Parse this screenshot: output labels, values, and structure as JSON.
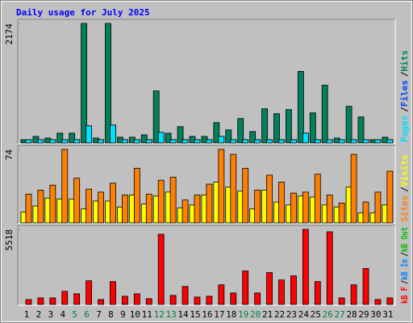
{
  "title": "Daily usage for July 2025",
  "legend_separator": "/",
  "chart_data": [
    {
      "type": "bar",
      "ylim": [
        0,
        2174
      ],
      "yticks": [
        2174
      ],
      "series": [
        {
          "name": "Hits",
          "color": "#00805c",
          "values": [
            59,
            118,
            89,
            177,
            177,
            2174,
            89,
            2174,
            104,
            104,
            148,
            946,
            177,
            296,
            118,
            118,
            370,
            237,
            444,
            207,
            621,
            532,
            606,
            1301,
            547,
            1050,
            89,
            666,
            473,
            59,
            104
          ]
        },
        {
          "name": "Files",
          "color": "#0040ff",
          "values": [
            59,
            59,
            59,
            59,
            59,
            311,
            59,
            325,
            59,
            59,
            59,
            192,
            59,
            59,
            59,
            59,
            118,
            59,
            59,
            59,
            59,
            59,
            59,
            177,
            59,
            59,
            59,
            59,
            59,
            59,
            59
          ]
        },
        {
          "name": "Pages",
          "color": "#00e0ff",
          "values": [
            59,
            59,
            59,
            59,
            59,
            311,
            59,
            325,
            59,
            59,
            59,
            192,
            59,
            59,
            59,
            59,
            118,
            59,
            59,
            59,
            59,
            59,
            59,
            177,
            59,
            59,
            59,
            59,
            59,
            59,
            59
          ]
        }
      ]
    },
    {
      "type": "bar",
      "ylim": [
        0,
        74
      ],
      "yticks": [
        74
      ],
      "series": [
        {
          "name": "Visits",
          "color": "#ffff00",
          "values": [
            11,
            17,
            25,
            24,
            24,
            14,
            22,
            22,
            16,
            28,
            19,
            27,
            31,
            15,
            18,
            28,
            41,
            36,
            32,
            14,
            33,
            21,
            18,
            27,
            26,
            18,
            16,
            36,
            10,
            10,
            18
          ]
        },
        {
          "name": "Sites",
          "color": "#ff8000",
          "values": [
            29,
            33,
            38,
            74,
            45,
            34,
            31,
            40,
            28,
            55,
            29,
            43,
            46,
            23,
            28,
            39,
            74,
            69,
            55,
            33,
            48,
            41,
            30,
            31,
            49,
            28,
            20,
            69,
            21,
            31,
            52
          ]
        }
      ]
    },
    {
      "type": "bar",
      "ylim": [
        0,
        5518
      ],
      "yticks": [
        5518
      ],
      "categories": [
        "1",
        "2",
        "3",
        "4",
        "5",
        "6",
        "7",
        "8",
        "9",
        "10",
        "11",
        "12",
        "13",
        "14",
        "15",
        "16",
        "17",
        "18",
        "19",
        "20",
        "21",
        "22",
        "23",
        "24",
        "25",
        "26",
        "27",
        "28",
        "29",
        "30",
        "31"
      ],
      "category_colors": [
        "#000000",
        "#000000",
        "#000000",
        "#000000",
        "#008040",
        "#008040",
        "#000000",
        "#000000",
        "#000000",
        "#000000",
        "#000000",
        "#008040",
        "#008040",
        "#000000",
        "#000000",
        "#000000",
        "#000000",
        "#000000",
        "#008040",
        "#008040",
        "#000000",
        "#000000",
        "#000000",
        "#000000",
        "#000000",
        "#008040",
        "#008040",
        "#000000",
        "#000000",
        "#000000",
        "#000000"
      ],
      "series": [
        {
          "name": "kB Out",
          "color": "#00c000",
          "values": [
            0,
            0,
            0,
            0,
            0,
            0,
            0,
            0,
            0,
            0,
            0,
            0,
            0,
            0,
            0,
            0,
            0,
            0,
            0,
            0,
            0,
            0,
            0,
            0,
            0,
            0,
            0,
            0,
            0,
            0,
            0
          ]
        },
        {
          "name": "kB In",
          "color": "#0080ff",
          "values": [
            0,
            0,
            0,
            0,
            0,
            0,
            0,
            0,
            0,
            0,
            0,
            0,
            0,
            0,
            0,
            0,
            0,
            0,
            0,
            0,
            0,
            0,
            0,
            0,
            0,
            0,
            0,
            0,
            0,
            0,
            0
          ]
        },
        {
          "name": "kB F",
          "color": "#ff0000",
          "values": [
            360,
            480,
            480,
            960,
            780,
            1739,
            360,
            1679,
            600,
            780,
            420,
            5158,
            660,
            1320,
            540,
            600,
            1439,
            840,
            2459,
            840,
            2339,
            1799,
            2099,
            5518,
            1679,
            5338,
            480,
            1439,
            2639,
            360,
            480
          ]
        }
      ]
    }
  ]
}
